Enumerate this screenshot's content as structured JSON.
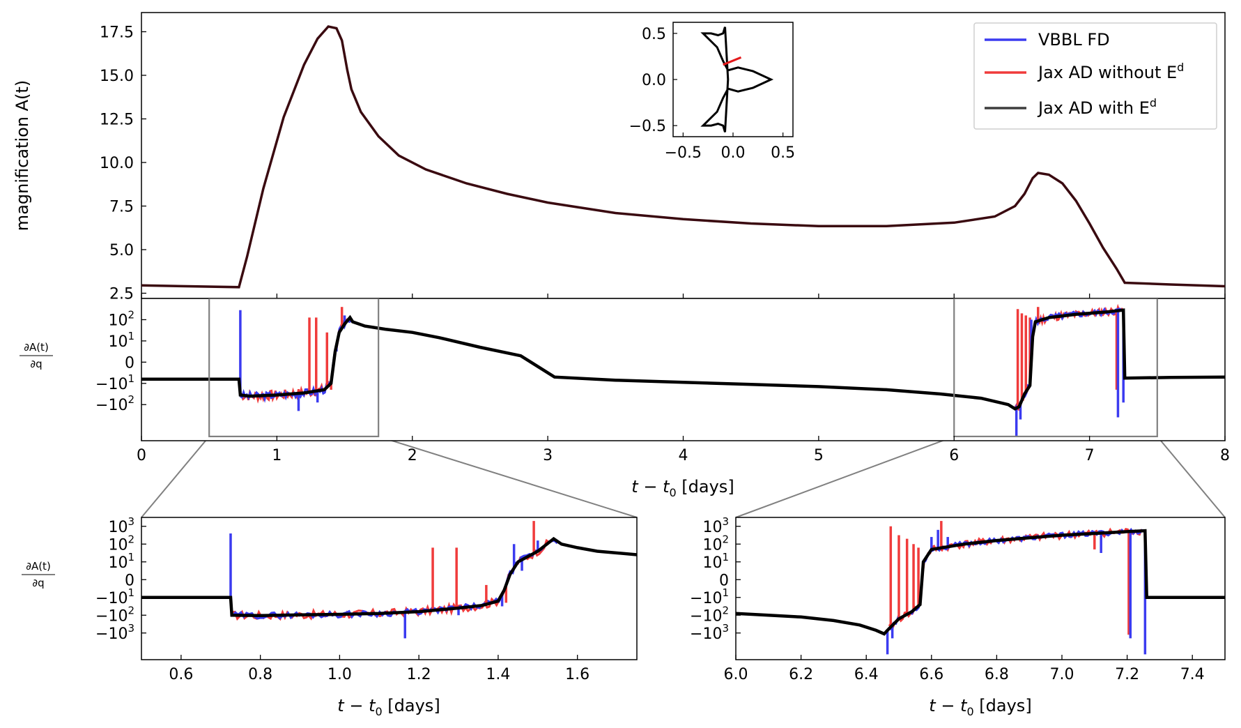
{
  "chart_data": [
    {
      "id": "magnification",
      "type": "line",
      "ylabel": "magnification A(t)",
      "xlim": [
        0,
        8
      ],
      "ylim": [
        2.2,
        18.6
      ],
      "yticks": [
        "2.5",
        "5.0",
        "7.5",
        "10.0",
        "12.5",
        "15.0",
        "17.5"
      ],
      "ytick_values": [
        2.5,
        5.0,
        7.5,
        10.0,
        12.5,
        15.0,
        17.5
      ],
      "legend": {
        "position": "top-right",
        "entries": [
          {
            "label": "VBBL FD",
            "color": "#3b3bf0"
          },
          {
            "label": "Jax AD without E",
            "sup": "d",
            "color": "#f03b3b"
          },
          {
            "label": "Jax AD with E",
            "sup": "d",
            "color": "#3d3d3d"
          }
        ]
      },
      "curve_color": "#3a0a10",
      "x": [
        0,
        0.72,
        0.78,
        0.9,
        1.05,
        1.2,
        1.3,
        1.38,
        1.44,
        1.48,
        1.52,
        1.55,
        1.62,
        1.75,
        1.9,
        2.1,
        2.4,
        2.7,
        3.0,
        3.5,
        4.0,
        4.5,
        5.0,
        5.5,
        6.0,
        6.3,
        6.45,
        6.52,
        6.58,
        6.62,
        6.7,
        6.8,
        6.9,
        7.0,
        7.1,
        7.2,
        7.26,
        7.6,
        8.0
      ],
      "y": [
        2.95,
        2.85,
        4.6,
        8.5,
        12.6,
        15.6,
        17.1,
        17.8,
        17.7,
        17.0,
        15.3,
        14.2,
        12.9,
        11.5,
        10.4,
        9.6,
        8.8,
        8.2,
        7.7,
        7.1,
        6.75,
        6.5,
        6.35,
        6.35,
        6.55,
        6.9,
        7.5,
        8.2,
        9.1,
        9.4,
        9.3,
        8.8,
        7.8,
        6.5,
        5.1,
        3.9,
        3.1,
        3.0,
        2.9
      ],
      "inset": {
        "xlim": [
          -0.6,
          0.6
        ],
        "ylim": [
          -0.62,
          0.62
        ],
        "xticks": [
          "−0.5",
          "0.0",
          "0.5"
        ],
        "xtick_values": [
          -0.5,
          0.0,
          0.5
        ],
        "yticks": [
          "−0.5",
          "0.0",
          "0.5"
        ],
        "ytick_values": [
          -0.5,
          0.0,
          0.5
        ],
        "caustic_x": [
          -0.08,
          -0.1,
          -0.15,
          -0.22,
          -0.3,
          -0.16,
          -0.1,
          -0.05,
          0.05,
          0.2,
          0.38,
          0.2,
          0.05,
          -0.05,
          -0.1,
          -0.16,
          -0.3,
          -0.22,
          -0.15,
          -0.1,
          -0.08,
          -0.05,
          -0.08
        ],
        "caustic_y": [
          0.57,
          0.5,
          0.48,
          0.5,
          0.5,
          0.35,
          0.2,
          0.1,
          0.13,
          0.09,
          0.0,
          -0.09,
          -0.13,
          -0.1,
          -0.2,
          -0.35,
          -0.5,
          -0.5,
          -0.48,
          -0.5,
          -0.57,
          0.0,
          0.57
        ],
        "trajectory_x": [
          -0.1,
          0.08
        ],
        "trajectory_y": [
          0.16,
          0.24
        ],
        "trajectory_color": "#e41a1c"
      }
    },
    {
      "id": "derivative-full",
      "type": "line",
      "ylabel_num": "∂A(t)",
      "ylabel_den": "∂q",
      "xlabel": "t − t",
      "xlabel_sub": "0",
      "xlabel_unit": " [days]",
      "xlim": [
        0,
        8
      ],
      "ylim": [
        -3.7,
        3.0
      ],
      "xticks": [
        "0",
        "1",
        "2",
        "3",
        "4",
        "5",
        "6",
        "7",
        "8"
      ],
      "xtick_values": [
        0,
        1,
        2,
        3,
        4,
        5,
        6,
        7,
        8
      ],
      "ytick_values": [
        2,
        1,
        0,
        -1,
        -2
      ],
      "yticks": [
        {
          "base": "10",
          "exp": "2"
        },
        {
          "base": "10",
          "exp": "1"
        },
        {
          "base": "0",
          "exp": ""
        },
        {
          "base": "−10",
          "exp": "1"
        },
        {
          "base": "−10",
          "exp": "2"
        }
      ],
      "zoom_boxes": [
        {
          "x0": 0.5,
          "x1": 1.75,
          "y0": -3.5,
          "y1": 3.0
        },
        {
          "x0": 6.0,
          "x1": 7.5,
          "y0": -3.5,
          "y1": 3.0
        }
      ],
      "black_x": [
        0,
        0.72,
        0.73,
        0.8,
        1.0,
        1.2,
        1.35,
        1.4,
        1.43,
        1.46,
        1.5,
        1.54,
        1.56,
        1.65,
        1.8,
        2.0,
        2.2,
        2.5,
        2.8,
        3.05,
        3.5,
        4.0,
        4.5,
        5.0,
        5.5,
        5.9,
        6.2,
        6.4,
        6.45,
        6.48,
        6.52,
        6.56,
        6.58,
        6.6,
        6.7,
        6.9,
        7.1,
        7.25,
        7.26,
        7.6,
        8.0
      ],
      "black_y": [
        -0.8,
        -0.8,
        -1.55,
        -1.6,
        -1.55,
        -1.45,
        -1.3,
        -1.0,
        0.5,
        1.4,
        1.8,
        2.1,
        1.9,
        1.7,
        1.55,
        1.4,
        1.15,
        0.7,
        0.3,
        -0.7,
        -0.85,
        -0.95,
        -1.05,
        -1.15,
        -1.3,
        -1.5,
        -1.7,
        -2.0,
        -2.2,
        -2.1,
        -1.5,
        -1.1,
        1.2,
        1.9,
        2.1,
        2.25,
        2.35,
        2.45,
        -0.75,
        -0.72,
        -0.7
      ],
      "blue_spikes": [
        {
          "x": 0.73,
          "y": 2.45
        },
        {
          "x": 1.16,
          "y": -2.3
        },
        {
          "x": 1.3,
          "y": -1.9
        },
        {
          "x": 1.44,
          "y": 0.5
        },
        {
          "x": 1.5,
          "y": 2.2
        },
        {
          "x": 6.46,
          "y": -3.5
        },
        {
          "x": 6.49,
          "y": -2.7
        },
        {
          "x": 6.57,
          "y": 2.0
        },
        {
          "x": 7.21,
          "y": -2.6
        },
        {
          "x": 7.25,
          "y": -1.9
        }
      ],
      "red_spikes": [
        {
          "x": 1.24,
          "y": 2.1
        },
        {
          "x": 1.29,
          "y": 2.1
        },
        {
          "x": 1.37,
          "y": 1.4
        },
        {
          "x": 1.4,
          "y": -1.3
        },
        {
          "x": 1.48,
          "y": 2.6
        },
        {
          "x": 6.47,
          "y": 2.5
        },
        {
          "x": 6.5,
          "y": 2.3
        },
        {
          "x": 6.53,
          "y": 2.2
        },
        {
          "x": 6.56,
          "y": 2.1
        },
        {
          "x": 6.62,
          "y": 2.6
        },
        {
          "x": 7.2,
          "y": -1.3
        }
      ]
    },
    {
      "id": "derivative-zoom-left",
      "type": "line",
      "ylabel_num": "∂A(t)",
      "ylabel_den": "∂q",
      "xlabel": "t − t",
      "xlabel_sub": "0",
      "xlabel_unit": " [days]",
      "xlim": [
        0.5,
        1.75
      ],
      "ylim": [
        -4.5,
        3.5
      ],
      "xticks": [
        "0.6",
        "0.8",
        "1.0",
        "1.2",
        "1.4",
        "1.6"
      ],
      "xtick_values": [
        0.6,
        0.8,
        1.0,
        1.2,
        1.4,
        1.6
      ],
      "ytick_values": [
        3,
        2,
        1,
        0,
        -1,
        -2,
        -3
      ],
      "yticks": [
        {
          "base": "10",
          "exp": "3"
        },
        {
          "base": "10",
          "exp": "2"
        },
        {
          "base": "10",
          "exp": "1"
        },
        {
          "base": "0",
          "exp": ""
        },
        {
          "base": "−10",
          "exp": "1"
        },
        {
          "base": "−10",
          "exp": "2"
        },
        {
          "base": "−10",
          "exp": "3"
        }
      ],
      "black_x": [
        0.5,
        0.725,
        0.728,
        0.8,
        0.9,
        1.0,
        1.1,
        1.2,
        1.3,
        1.36,
        1.4,
        1.415,
        1.43,
        1.45,
        1.5,
        1.54,
        1.56,
        1.6,
        1.65,
        1.75
      ],
      "black_y": [
        -1.0,
        -1.0,
        -2.0,
        -2.02,
        -1.98,
        -1.95,
        -1.9,
        -1.8,
        -1.6,
        -1.45,
        -1.2,
        -0.6,
        0.3,
        1.0,
        1.6,
        2.3,
        2.0,
        1.8,
        1.6,
        1.4
      ],
      "blue_spikes": [
        {
          "x": 0.725,
          "y": 2.6
        },
        {
          "x": 1.165,
          "y": -3.3
        },
        {
          "x": 1.24,
          "y": -1.6
        },
        {
          "x": 1.3,
          "y": -2.0
        },
        {
          "x": 1.41,
          "y": -1.5
        },
        {
          "x": 1.44,
          "y": 2.0
        },
        {
          "x": 1.46,
          "y": 0.5
        },
        {
          "x": 1.5,
          "y": 2.2
        },
        {
          "x": 1.52,
          "y": 2.0
        }
      ],
      "red_spikes": [
        {
          "x": 1.235,
          "y": 1.8
        },
        {
          "x": 1.295,
          "y": 1.8
        },
        {
          "x": 1.37,
          "y": -0.3
        },
        {
          "x": 1.42,
          "y": -1.3
        },
        {
          "x": 1.49,
          "y": 3.3
        },
        {
          "x": 1.505,
          "y": 1.5
        }
      ]
    },
    {
      "id": "derivative-zoom-right",
      "type": "line",
      "xlabel": "t − t",
      "xlabel_sub": "0",
      "xlabel_unit": " [days]",
      "xlim": [
        6.0,
        7.5
      ],
      "ylim": [
        -4.5,
        3.5
      ],
      "xticks": [
        "6.0",
        "6.2",
        "6.4",
        "6.6",
        "6.8",
        "7.0",
        "7.2",
        "7.4"
      ],
      "xtick_values": [
        6.0,
        6.2,
        6.4,
        6.6,
        6.8,
        7.0,
        7.2,
        7.4
      ],
      "ytick_values": [
        3,
        2,
        1,
        0,
        -1,
        -2,
        -3
      ],
      "yticks": [
        {
          "base": "10",
          "exp": "3"
        },
        {
          "base": "10",
          "exp": "2"
        },
        {
          "base": "10",
          "exp": "1"
        },
        {
          "base": "0",
          "exp": ""
        },
        {
          "base": "−10",
          "exp": "1"
        },
        {
          "base": "−10",
          "exp": "2"
        },
        {
          "base": "−10",
          "exp": "3"
        }
      ],
      "black_x": [
        6.0,
        6.1,
        6.2,
        6.3,
        6.38,
        6.43,
        6.455,
        6.47,
        6.5,
        6.54,
        6.565,
        6.575,
        6.6,
        6.7,
        6.8,
        6.9,
        7.0,
        7.1,
        7.2,
        7.255,
        7.26,
        7.4,
        7.5
      ],
      "black_y": [
        -1.9,
        -2.0,
        -2.1,
        -2.3,
        -2.55,
        -2.85,
        -3.05,
        -2.75,
        -2.2,
        -1.8,
        -1.4,
        1.0,
        1.7,
        2.0,
        2.2,
        2.35,
        2.5,
        2.6,
        2.7,
        2.75,
        -1.0,
        -1.0,
        -1.0
      ],
      "blue_spikes": [
        {
          "x": 6.465,
          "y": -4.2
        },
        {
          "x": 6.48,
          "y": -3.3
        },
        {
          "x": 6.6,
          "y": 2.4
        },
        {
          "x": 6.62,
          "y": 2.8
        },
        {
          "x": 6.65,
          "y": 2.4
        },
        {
          "x": 7.21,
          "y": -3.3
        },
        {
          "x": 7.255,
          "y": -4.2
        },
        {
          "x": 7.12,
          "y": 1.5
        }
      ],
      "red_spikes": [
        {
          "x": 6.475,
          "y": 3.0
        },
        {
          "x": 6.5,
          "y": 2.5
        },
        {
          "x": 6.525,
          "y": 2.3
        },
        {
          "x": 6.545,
          "y": 2.0
        },
        {
          "x": 6.56,
          "y": 1.8
        },
        {
          "x": 6.63,
          "y": 3.3
        },
        {
          "x": 7.205,
          "y": -3.1
        },
        {
          "x": 7.1,
          "y": 1.7
        }
      ]
    }
  ]
}
